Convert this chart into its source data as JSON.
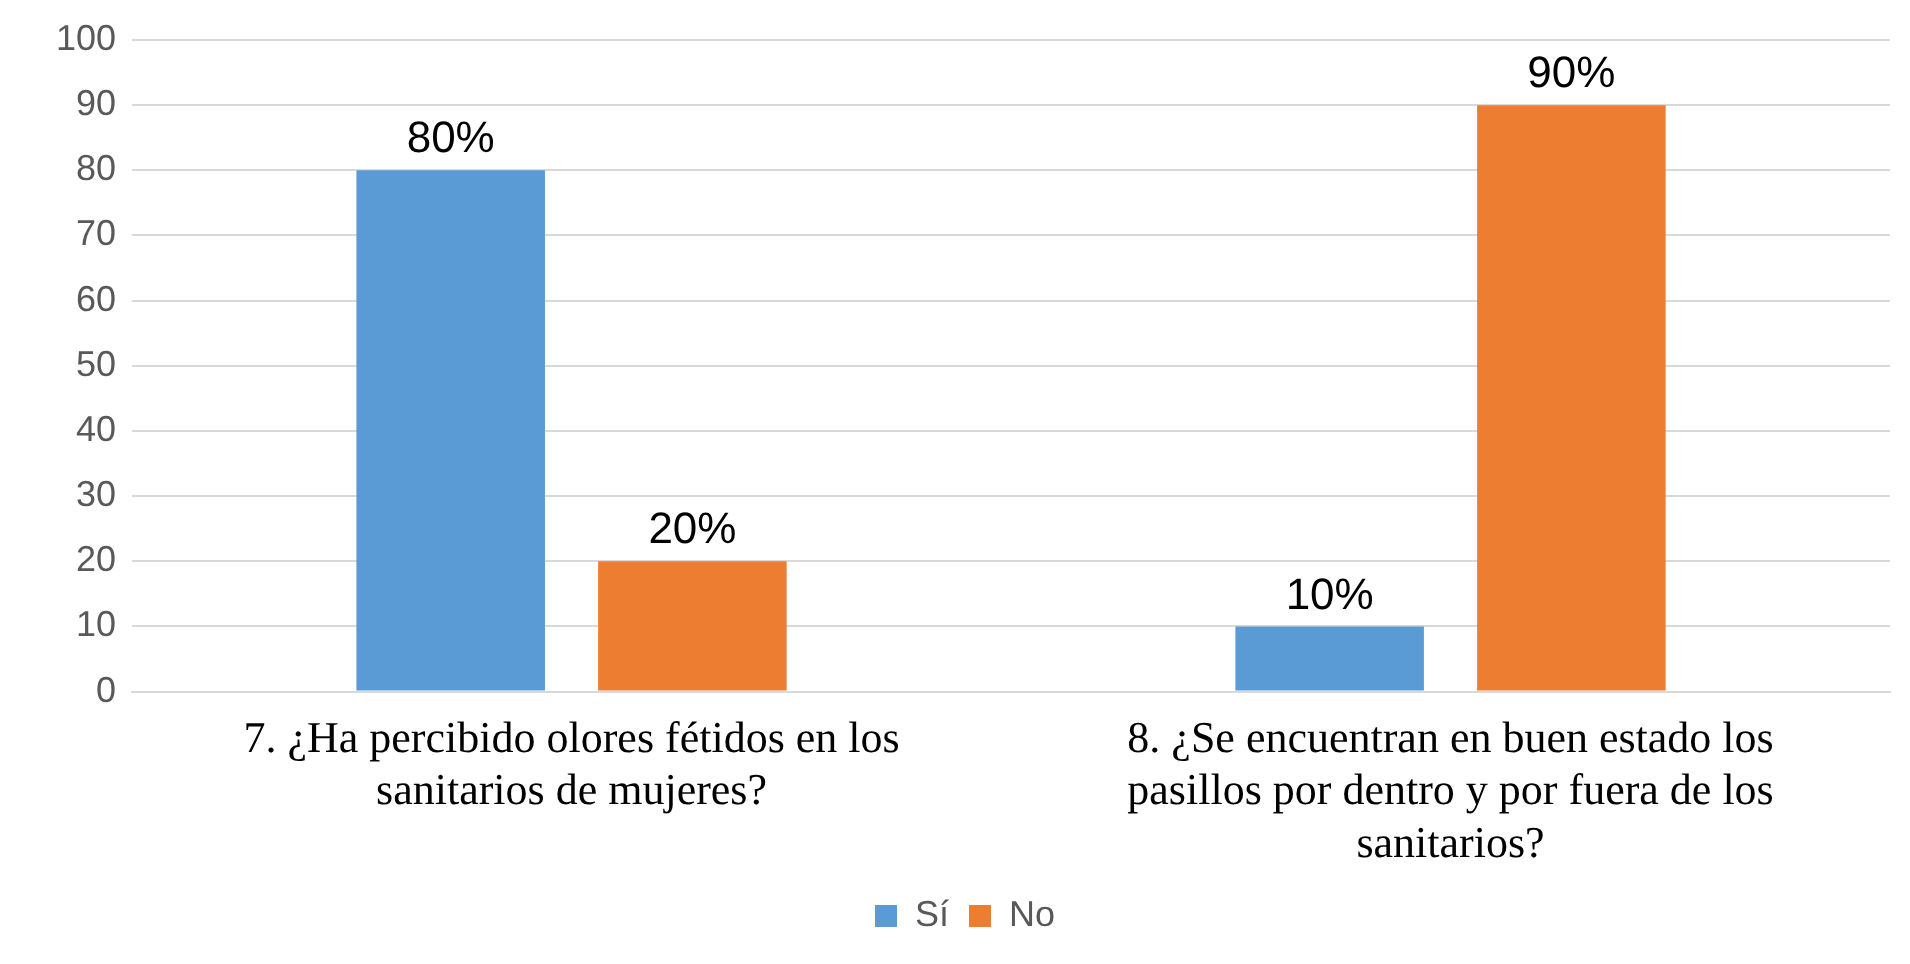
{
  "chart_data": {
    "type": "bar",
    "categories": [
      "7. ¿Ha percibido olores fétidos en los sanitarios de mujeres?",
      "8. ¿Se encuentran en buen estado los pasillos por dentro y por fuera de los sanitarios?"
    ],
    "series": [
      {
        "name": "Sí",
        "color": "#5b9bd5",
        "values": [
          80,
          10
        ],
        "value_labels": [
          "80%",
          "10%"
        ]
      },
      {
        "name": "No",
        "color": "#ed7d31",
        "values": [
          20,
          90
        ],
        "value_labels": [
          "20%",
          "90%"
        ]
      }
    ],
    "ylim": [
      0,
      100
    ],
    "yticks": [
      0,
      10,
      20,
      30,
      40,
      50,
      60,
      70,
      80,
      90,
      100
    ],
    "grid": "y",
    "legend": "bottom"
  }
}
